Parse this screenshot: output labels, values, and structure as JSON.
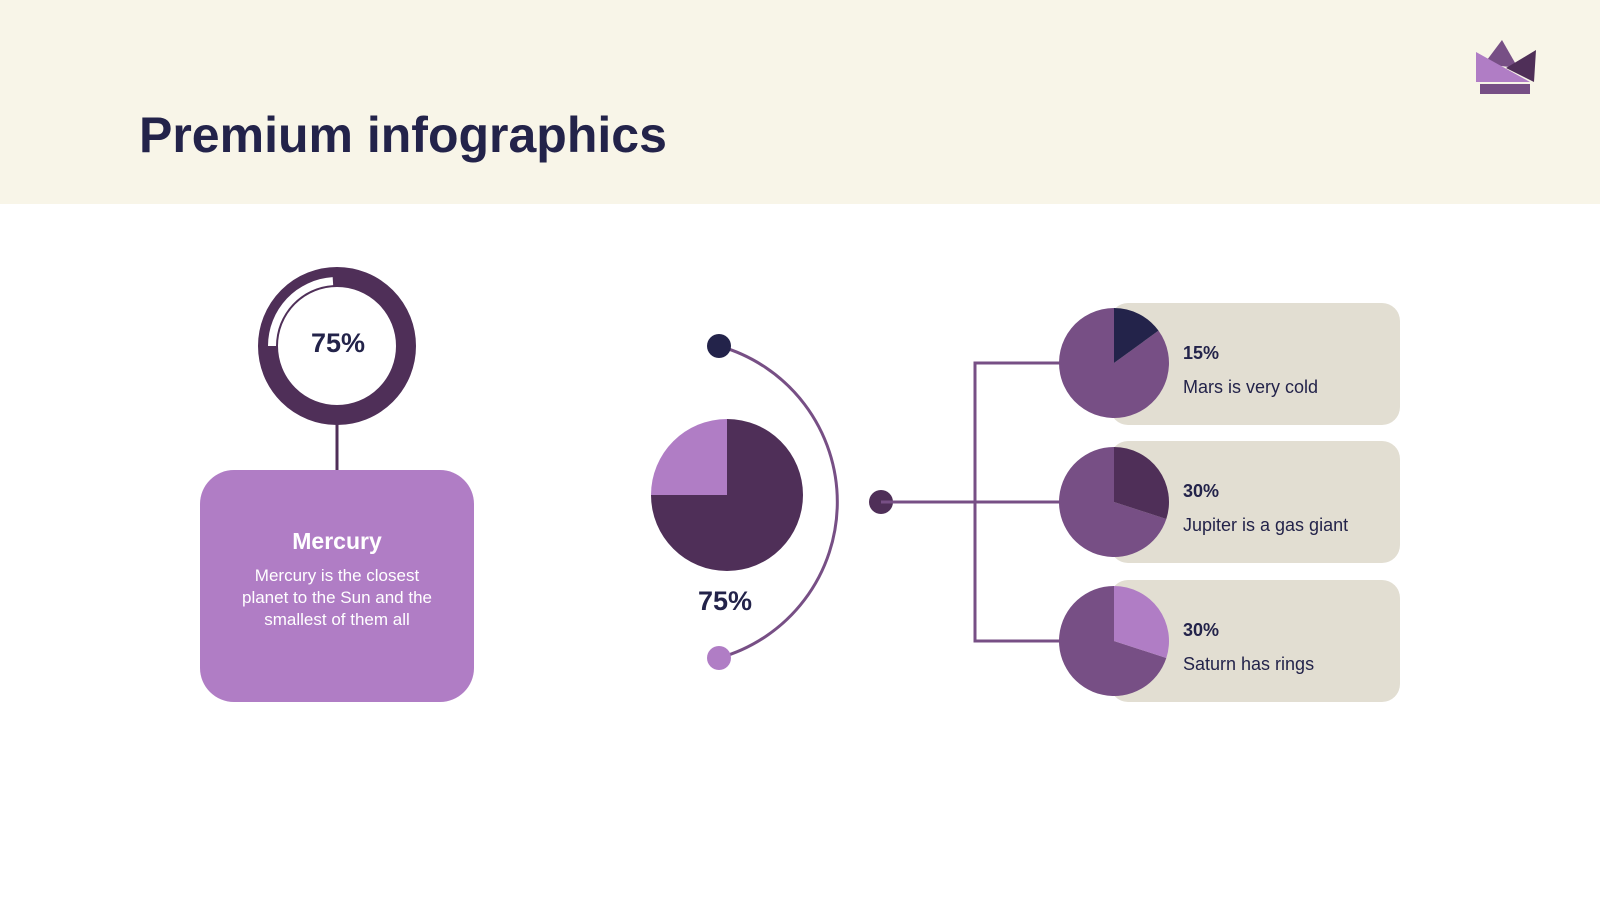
{
  "title": "Premium infographics",
  "colors": {
    "dark_navy": "#23234a",
    "dark_purple": "#4f2f58",
    "mid_purple": "#774f85",
    "light_purple": "#b07dc5",
    "beige": "#e2ded2",
    "header_bg": "#f8f5e8"
  },
  "logo_icon": "crown-icon",
  "ring": {
    "percent": 75,
    "label": "75%"
  },
  "card": {
    "title": "Mercury",
    "text": "Mercury is the closest planet to the Sun and the smallest of them all"
  },
  "center_pie": {
    "percent": 75,
    "label": "75%"
  },
  "items": [
    {
      "percent": 15,
      "pct_label": "15%",
      "text": "Mars is very cold",
      "slice_color": "#23234a"
    },
    {
      "percent": 30,
      "pct_label": "30%",
      "text": "Jupiter is a gas giant",
      "slice_color": "#4f2f58"
    },
    {
      "percent": 30,
      "pct_label": "30%",
      "text": "Saturn has rings",
      "slice_color": "#b07dc5"
    }
  ]
}
